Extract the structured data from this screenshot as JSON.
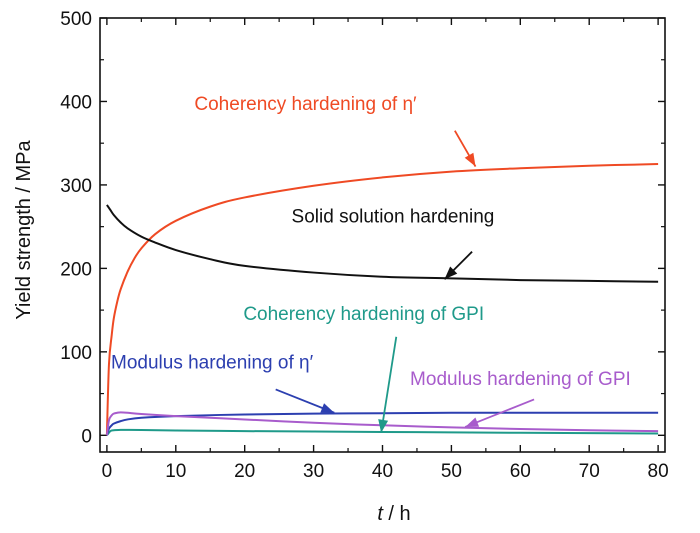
{
  "colors": {
    "coherency_eta": "#ef4a24",
    "solid_solution": "#111111",
    "coherency_gpi": "#1f9a8a",
    "modulus_eta": "#2c3fb0",
    "modulus_gpi": "#a85ccc"
  },
  "chart_data": {
    "type": "line",
    "title": "",
    "xlabel_italic": "t",
    "xlabel_rest": " / h",
    "ylabel": "Yield strength / MPa",
    "xlim": [
      -1,
      81
    ],
    "ylim": [
      -20,
      500
    ],
    "x_ticks": [
      "0",
      "10",
      "20",
      "30",
      "40",
      "50",
      "60",
      "70",
      "80"
    ],
    "y_ticks": [
      "0",
      "100",
      "200",
      "300",
      "400",
      "500"
    ],
    "grid": false,
    "legend": "none",
    "series": [
      {
        "name": "Coherency hardening of η′",
        "color_key": "coherency_eta",
        "x": [
          0,
          0.3,
          0.7,
          1,
          1.5,
          2,
          3,
          4,
          5,
          7,
          10,
          15,
          20,
          30,
          40,
          50,
          60,
          70,
          80
        ],
        "y": [
          0,
          85,
          120,
          140,
          160,
          175,
          196,
          212,
          224,
          241,
          257,
          274,
          285,
          299,
          309,
          316,
          320,
          323,
          325
        ]
      },
      {
        "name": "Solid solution hardening",
        "color_key": "solid_solution",
        "x": [
          0,
          0.5,
          1,
          2,
          3,
          5,
          7,
          10,
          15,
          20,
          30,
          40,
          50,
          60,
          70,
          80
        ],
        "y": [
          276,
          270,
          264,
          255,
          248,
          238,
          231,
          222,
          211,
          203,
          195,
          190,
          188,
          186,
          185,
          184
        ]
      },
      {
        "name": "Coherency hardening of GPI",
        "color_key": "coherency_gpi",
        "x": [
          0,
          0.5,
          1,
          2,
          3,
          5,
          10,
          20,
          30,
          40,
          50,
          60,
          70,
          80
        ],
        "y": [
          0,
          5,
          6,
          6.5,
          6.5,
          6.3,
          5.8,
          5,
          4.5,
          4,
          3.5,
          3,
          2.6,
          2.2
        ]
      },
      {
        "name": "Modulus hardening of η′",
        "color_key": "modulus_eta",
        "x": [
          0,
          0.3,
          0.7,
          1,
          2,
          3,
          5,
          10,
          20,
          30,
          40,
          50,
          60,
          70,
          80
        ],
        "y": [
          0,
          8,
          12,
          14,
          17,
          19,
          21,
          23,
          25,
          26,
          26.5,
          27,
          27,
          27,
          27
        ]
      },
      {
        "name": "Modulus hardening of GPI",
        "color_key": "modulus_gpi",
        "x": [
          0,
          0.3,
          0.7,
          1,
          1.5,
          2,
          3,
          5,
          10,
          20,
          30,
          40,
          50,
          60,
          70,
          80
        ],
        "y": [
          0,
          18,
          24,
          26,
          27,
          27.5,
          27,
          25.5,
          23,
          19,
          15,
          12,
          9.5,
          7.5,
          6,
          5
        ]
      }
    ],
    "annotations": [
      {
        "text": "Coherency hardening of η′",
        "color_key": "coherency_eta",
        "label_x": 12.7,
        "label_y": 390,
        "arrow_from": [
          50.5,
          365
        ],
        "arrow_to": [
          53.5,
          322
        ]
      },
      {
        "text": "Solid solution hardening",
        "color_key": "solid_solution",
        "label_x": 26.8,
        "label_y": 255,
        "arrow_from": [
          53,
          220
        ],
        "arrow_to": [
          49,
          187
        ]
      },
      {
        "text": "Coherency hardening of GPI",
        "color_key": "coherency_gpi",
        "label_x": 19.8,
        "label_y": 138,
        "arrow_from": [
          42,
          118
        ],
        "arrow_to": [
          39.8,
          3
        ]
      },
      {
        "text": "Modulus hardening of η′",
        "color_key": "modulus_eta",
        "label_x": 0.6,
        "label_y": 80,
        "arrow_from": [
          24.5,
          55
        ],
        "arrow_to": [
          33,
          27
        ]
      },
      {
        "text": "Modulus hardening of GPI",
        "color_key": "modulus_gpi",
        "label_x": 44,
        "label_y": 60,
        "arrow_from": [
          62,
          43
        ],
        "arrow_to": [
          52,
          10
        ]
      }
    ]
  }
}
